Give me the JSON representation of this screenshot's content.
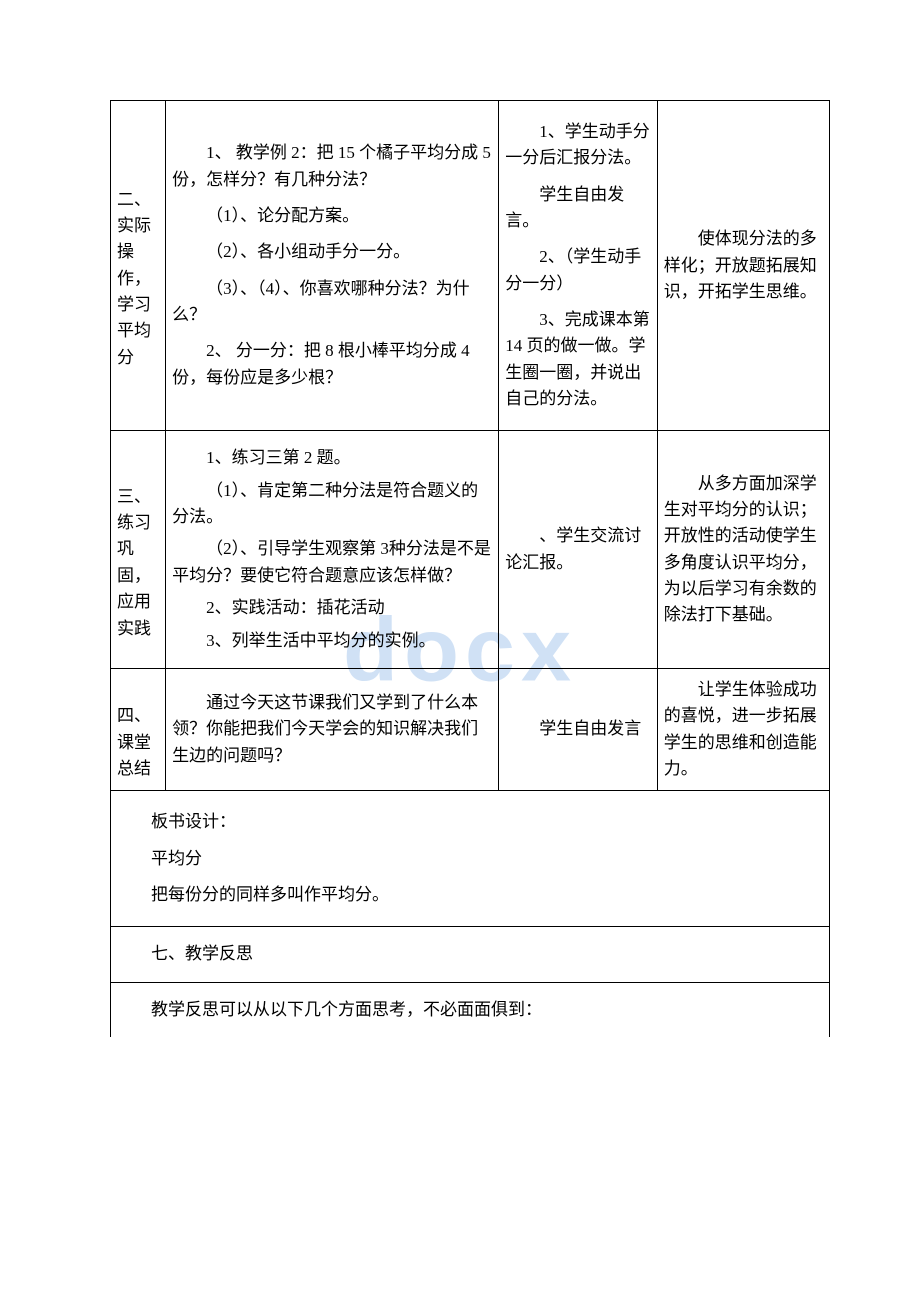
{
  "watermark": "docx",
  "rows": [
    {
      "colA": "　　二、实际操作，学习平均分",
      "colB": [
        "1、 教学例 2：把 15 个橘子平均分成 5 份，怎样分？有几种分法？",
        "（1）、论分配方案。",
        "（2）、各小组动手分一分。",
        "（3）、（4）、你喜欢哪种分法？为什么？",
        "2、 分一分：把 8 根小棒平均分成 4 份，每份应是多少根？"
      ],
      "colC": [
        "1、学生动手分一分后汇报分法。",
        "学生自由发言。",
        "2、（学生动手分一分）",
        "3、完成课本第 14 页的做一做。学生圈一圈，并说出自己的分法。"
      ],
      "colD": "　　使体现分法的多样化；开放题拓展知识，开拓学生思维。"
    },
    {
      "colA": "　　三、练习巩固，应用实践",
      "colB": [
        "1、练习三第 2 题。",
        "（1）、肯定第二种分法是符合题义的分法。",
        "（2）、引导学生观察第 3种分法是不是平均分？要使它符合题意应该怎样做？",
        "2、实践活动：插花活动",
        "3、列举生活中平均分的实例。"
      ],
      "colC": [
        "、学生交流讨论汇报。"
      ],
      "colD": "　　从多方面加深学生对平均分的认识；开放性的活动使学生多角度认识平均分，为以后学习有余数的除法打下基础。"
    },
    {
      "colA": "　　四、课堂总结",
      "colB": [
        "通过今天这节课我们又学到了什么本领？你能把我们今天学会的知识解决我们生边的问题吗？"
      ],
      "colC": [
        "学生自由发言"
      ],
      "colD": "　　让学生体验成功的喜悦，进一步拓展学生的思维和创造能力。"
    }
  ],
  "board": {
    "lines": [
      "板书设计：",
      "平均分",
      "把每份分的同样多叫作平均分。"
    ]
  },
  "reflectHeader": "七、教学反思",
  "reflectBody": "教学反思可以从以下几个方面思考，不必面面俱到："
}
